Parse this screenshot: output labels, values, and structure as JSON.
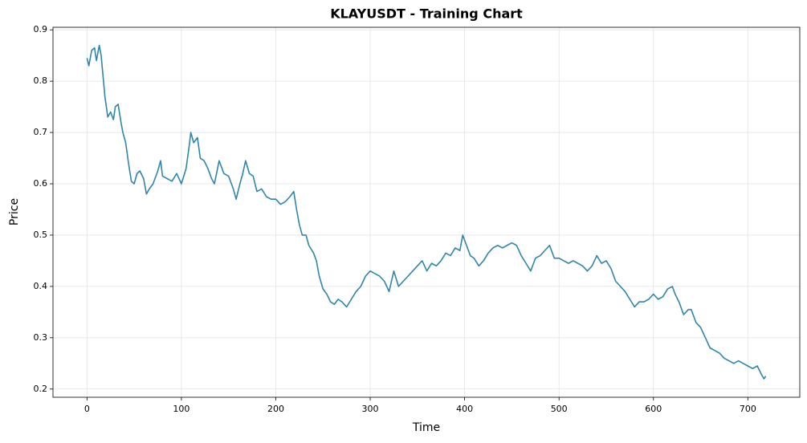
{
  "chart_data": {
    "type": "line",
    "title": "KLAYUSDT - Training Chart",
    "xlabel": "Time",
    "ylabel": "Price",
    "x": [
      0,
      2,
      5,
      8,
      10,
      13,
      15,
      17,
      19,
      22,
      25,
      28,
      30,
      33,
      36,
      38,
      41,
      44,
      47,
      50,
      53,
      56,
      60,
      63,
      66,
      70,
      75,
      78,
      80,
      85,
      90,
      95,
      100,
      105,
      108,
      110,
      113,
      117,
      120,
      124,
      128,
      132,
      135,
      140,
      145,
      150,
      155,
      158,
      162,
      165,
      168,
      172,
      176,
      180,
      185,
      190,
      195,
      200,
      205,
      210,
      215,
      219,
      222,
      225,
      228,
      232,
      235,
      240,
      243,
      246,
      250,
      254,
      258,
      262,
      266,
      270,
      275,
      280,
      285,
      290,
      295,
      300,
      305,
      310,
      315,
      320,
      325,
      330,
      335,
      340,
      345,
      350,
      355,
      360,
      365,
      370,
      375,
      380,
      385,
      390,
      395,
      398,
      402,
      406,
      410,
      415,
      420,
      425,
      430,
      435,
      440,
      445,
      450,
      455,
      460,
      465,
      470,
      475,
      480,
      485,
      490,
      495,
      500,
      505,
      510,
      515,
      520,
      525,
      530,
      535,
      540,
      545,
      550,
      555,
      560,
      565,
      570,
      575,
      580,
      585,
      590,
      595,
      600,
      605,
      610,
      615,
      620,
      623,
      627,
      632,
      637,
      640,
      645,
      650,
      655,
      660,
      665,
      670,
      675,
      680,
      685,
      690,
      695,
      700,
      705,
      710,
      714,
      717,
      719
    ],
    "series": [
      {
        "name": "Price",
        "color": "#2e86ab",
        "values": [
          0.845,
          0.83,
          0.86,
          0.865,
          0.84,
          0.87,
          0.85,
          0.81,
          0.77,
          0.73,
          0.74,
          0.725,
          0.75,
          0.755,
          0.72,
          0.7,
          0.68,
          0.64,
          0.605,
          0.6,
          0.62,
          0.625,
          0.61,
          0.58,
          0.59,
          0.6,
          0.625,
          0.645,
          0.615,
          0.61,
          0.605,
          0.62,
          0.6,
          0.63,
          0.67,
          0.7,
          0.68,
          0.69,
          0.65,
          0.645,
          0.63,
          0.61,
          0.6,
          0.645,
          0.62,
          0.615,
          0.59,
          0.57,
          0.6,
          0.62,
          0.645,
          0.62,
          0.615,
          0.585,
          0.59,
          0.575,
          0.57,
          0.57,
          0.56,
          0.565,
          0.575,
          0.585,
          0.55,
          0.52,
          0.5,
          0.5,
          0.48,
          0.465,
          0.45,
          0.42,
          0.395,
          0.385,
          0.37,
          0.365,
          0.375,
          0.37,
          0.36,
          0.375,
          0.39,
          0.4,
          0.42,
          0.43,
          0.425,
          0.42,
          0.41,
          0.39,
          0.43,
          0.4,
          0.41,
          0.42,
          0.43,
          0.44,
          0.45,
          0.43,
          0.445,
          0.44,
          0.45,
          0.465,
          0.46,
          0.475,
          0.47,
          0.5,
          0.48,
          0.46,
          0.455,
          0.44,
          0.45,
          0.465,
          0.475,
          0.48,
          0.475,
          0.48,
          0.485,
          0.48,
          0.46,
          0.445,
          0.43,
          0.455,
          0.46,
          0.47,
          0.48,
          0.455,
          0.455,
          0.45,
          0.445,
          0.45,
          0.445,
          0.44,
          0.43,
          0.44,
          0.46,
          0.445,
          0.45,
          0.435,
          0.41,
          0.4,
          0.39,
          0.375,
          0.36,
          0.37,
          0.37,
          0.375,
          0.385,
          0.375,
          0.38,
          0.395,
          0.4,
          0.385,
          0.37,
          0.345,
          0.355,
          0.355,
          0.33,
          0.32,
          0.3,
          0.28,
          0.275,
          0.27,
          0.26,
          0.255,
          0.25,
          0.255,
          0.25,
          0.245,
          0.24,
          0.245,
          0.23,
          0.22,
          0.225
        ]
      }
    ],
    "xlim": [
      -36,
      755
    ],
    "ylim": [
      0.184,
      0.905
    ],
    "xticks": [
      0,
      100,
      200,
      300,
      400,
      500,
      600,
      700
    ],
    "yticks": [
      0.2,
      0.3,
      0.4,
      0.5,
      0.6,
      0.7,
      0.8,
      0.9
    ],
    "grid": true
  }
}
